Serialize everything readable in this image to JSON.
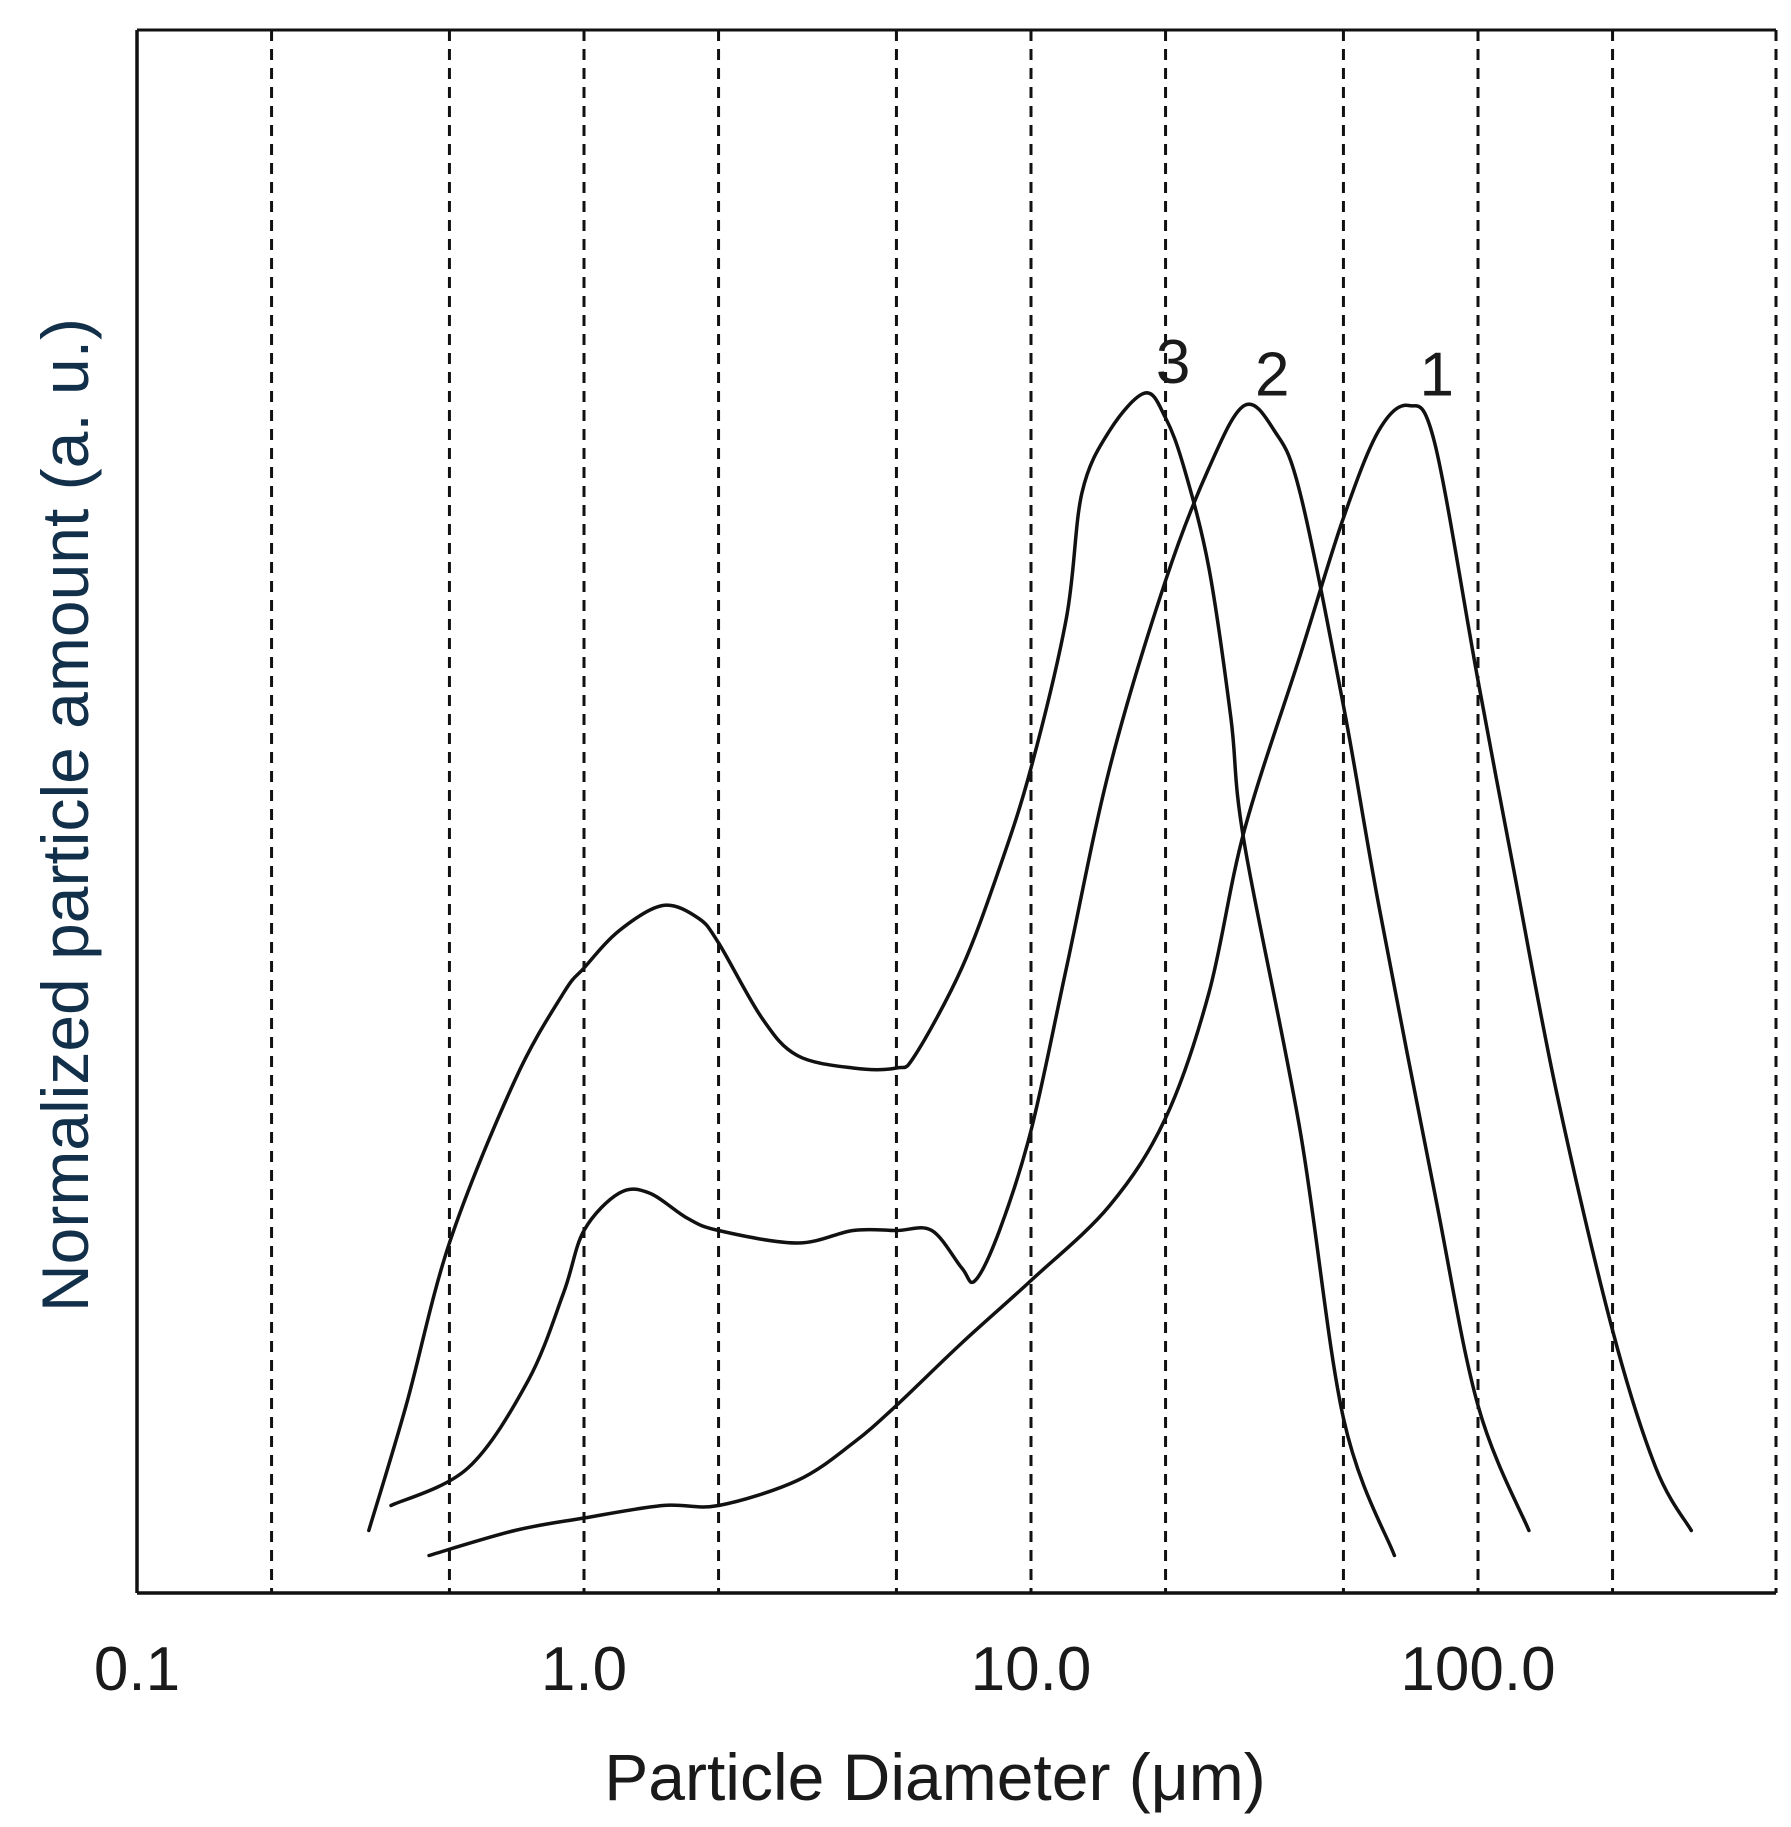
{
  "chart_data": {
    "type": "line",
    "xlabel": "Particle Diameter (μm)",
    "ylabel": "Normalized particle amount (a. u.)",
    "x_scale": "log",
    "xlim": [
      0.1,
      700
    ],
    "ylim": [
      0,
      1
    ],
    "x_tick_labels": [
      {
        "value": 0.1,
        "label": "0.1"
      },
      {
        "value": 1,
        "label": "1.0"
      },
      {
        "value": 10,
        "label": "10.0"
      },
      {
        "value": 100,
        "label": "100.0"
      }
    ],
    "y_tick_labels": [],
    "grid": {
      "x": true,
      "y": false,
      "style": "dashed",
      "x_positions": [
        0.2,
        0.5,
        1,
        2,
        5,
        10,
        20,
        50,
        100,
        200,
        700
      ]
    },
    "legend": "none",
    "series": [
      {
        "name": "1",
        "x": [
          0.45,
          0.7,
          1.0,
          1.5,
          2.0,
          3.0,
          4.0,
          5.0,
          7.0,
          10.0,
          15.0,
          20.0,
          25.0,
          30.0,
          40.0,
          50.0,
          60.0,
          70.0,
          80.0,
          100.0,
          120.0,
          150.0,
          200.0,
          250.0,
          300.0
        ],
        "y": [
          0.03,
          0.05,
          0.06,
          0.07,
          0.07,
          0.09,
          0.12,
          0.15,
          0.2,
          0.25,
          0.31,
          0.38,
          0.48,
          0.61,
          0.75,
          0.86,
          0.93,
          0.95,
          0.92,
          0.73,
          0.58,
          0.4,
          0.21,
          0.1,
          0.05
        ]
      },
      {
        "name": "2",
        "x": [
          0.37,
          0.55,
          0.75,
          0.9,
          1.0,
          1.2,
          1.4,
          1.7,
          2.0,
          3.0,
          4.0,
          5.0,
          6.0,
          7.0,
          7.5,
          8.5,
          10.0,
          12.0,
          15.0,
          20.0,
          25.0,
          30.0,
          35.0,
          40.0,
          50.0,
          60.0,
          80.0,
          100.0,
          130.0
        ],
        "y": [
          0.07,
          0.1,
          0.17,
          0.24,
          0.29,
          0.32,
          0.32,
          0.3,
          0.29,
          0.28,
          0.29,
          0.29,
          0.29,
          0.26,
          0.25,
          0.29,
          0.37,
          0.5,
          0.66,
          0.81,
          0.9,
          0.95,
          0.93,
          0.88,
          0.71,
          0.55,
          0.32,
          0.15,
          0.05
        ]
      },
      {
        "name": "3",
        "x": [
          0.33,
          0.4,
          0.5,
          0.7,
          0.9,
          1.0,
          1.2,
          1.5,
          1.8,
          2.0,
          2.5,
          3.0,
          4.0,
          5.0,
          5.5,
          7.0,
          8.5,
          10.0,
          12.0,
          13.0,
          15.0,
          18.0,
          20.0,
          22.0,
          25.0,
          28.0,
          30.0,
          40.0,
          50.0,
          65.0
        ],
        "y": [
          0.05,
          0.15,
          0.28,
          0.41,
          0.48,
          0.5,
          0.53,
          0.55,
          0.54,
          0.52,
          0.46,
          0.43,
          0.42,
          0.42,
          0.43,
          0.5,
          0.58,
          0.66,
          0.78,
          0.88,
          0.93,
          0.96,
          0.94,
          0.9,
          0.82,
          0.7,
          0.6,
          0.37,
          0.14,
          0.03
        ]
      }
    ]
  }
}
